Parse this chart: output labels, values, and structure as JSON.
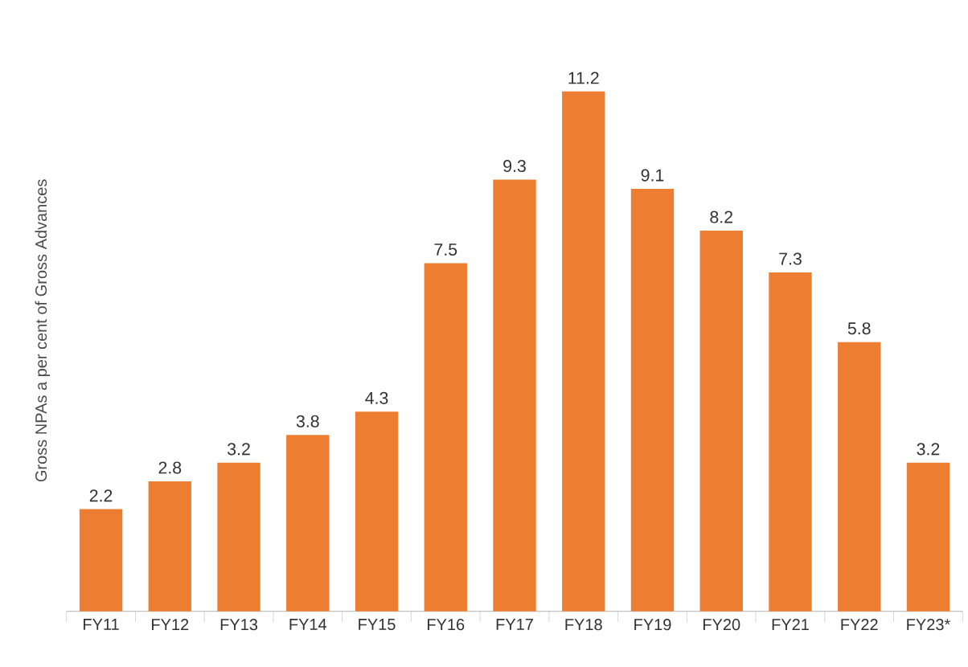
{
  "chart_data": {
    "type": "bar",
    "ylabel": "Gross NPAs a per cent of Gross Advances",
    "categories": [
      "FY11",
      "FY12",
      "FY13",
      "FY14",
      "FY15",
      "FY16",
      "FY17",
      "FY18",
      "FY19",
      "FY20",
      "FY21",
      "FY22",
      "FY23*"
    ],
    "values": [
      2.2,
      2.8,
      3.2,
      3.8,
      4.3,
      7.5,
      9.3,
      11.2,
      9.1,
      8.2,
      7.3,
      5.8,
      3.2
    ],
    "color": "#ed7d31",
    "data_labels": true
  }
}
